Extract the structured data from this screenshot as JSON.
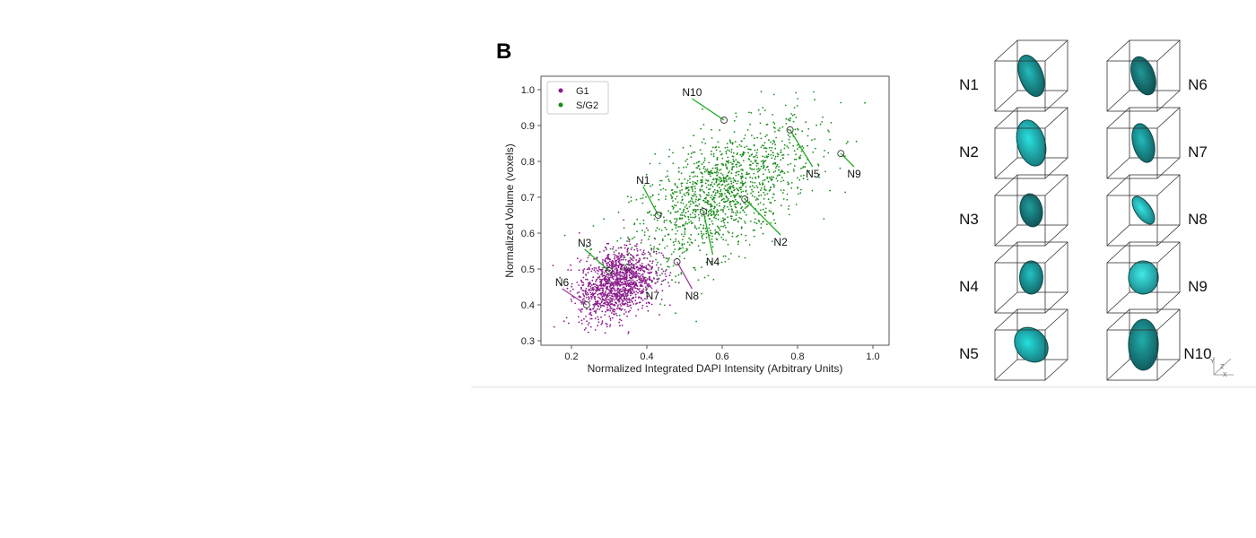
{
  "panel_label": "B",
  "chart_data": {
    "type": "scatter",
    "title": "",
    "xlabel": "Normalized Integrated DAPI Intensity (Arbitrary Units)",
    "ylabel": "Normalized Volume (voxels)",
    "xlim": [
      0.12,
      1.05
    ],
    "ylim": [
      0.29,
      1.03
    ],
    "xticks": [
      "0.2",
      "0.4",
      "0.6",
      "0.8",
      "1.0"
    ],
    "xtick_values": [
      0.2,
      0.4,
      0.6,
      0.8,
      1.0
    ],
    "yticks": [
      "0.3",
      "0.4",
      "0.5",
      "0.6",
      "0.7",
      "0.8",
      "0.9",
      "1.0"
    ],
    "ytick_values": [
      0.3,
      0.4,
      0.5,
      0.6,
      0.7,
      0.8,
      0.9,
      1.0
    ],
    "grid": false,
    "legend_position": "top-left",
    "series": [
      {
        "name": "G1",
        "color": "#8b1a8b",
        "count": 1300,
        "center": [
          0.32,
          0.46
        ],
        "spread": [
          0.05,
          0.05
        ],
        "corr": 0.3
      },
      {
        "name": "S/G2",
        "color": "#1a8c1a",
        "count": 1400,
        "center": [
          0.6,
          0.71
        ],
        "spread": [
          0.12,
          0.1
        ],
        "corr": 0.6
      }
    ],
    "annotations": [
      {
        "label": "N1",
        "x": 0.43,
        "y": 0.65,
        "tx": 0.39,
        "ty": 0.73,
        "color": "#22aa22"
      },
      {
        "label": "N2",
        "x": 0.66,
        "y": 0.695,
        "tx": 0.755,
        "ty": 0.595,
        "color": "#22aa22"
      },
      {
        "label": "N3",
        "x": 0.3,
        "y": 0.495,
        "tx": 0.235,
        "ty": 0.555,
        "color": "#22aa22"
      },
      {
        "label": "N4",
        "x": 0.55,
        "y": 0.66,
        "tx": 0.575,
        "ty": 0.54,
        "color": "#22aa22"
      },
      {
        "label": "N5",
        "x": 0.78,
        "y": 0.888,
        "tx": 0.84,
        "ty": 0.785,
        "color": "#22aa22"
      },
      {
        "label": "N6",
        "x": 0.24,
        "y": 0.4,
        "tx": 0.175,
        "ty": 0.445,
        "color": "#a040a0"
      },
      {
        "label": "N7",
        "x": 0.35,
        "y": 0.505,
        "tx": 0.415,
        "ty": 0.445,
        "color": "#a040a0"
      },
      {
        "label": "N8",
        "x": 0.48,
        "y": 0.52,
        "tx": 0.52,
        "ty": 0.445,
        "color": "#a040a0"
      },
      {
        "label": "N9",
        "x": 0.915,
        "y": 0.822,
        "tx": 0.95,
        "ty": 0.785,
        "color": "#22aa22"
      },
      {
        "label": "N10",
        "x": 0.605,
        "y": 0.915,
        "tx": 0.52,
        "ty": 0.975,
        "color": "#22aa22"
      }
    ]
  },
  "nuclei": [
    {
      "label": "N1",
      "brightness": 0.45,
      "rx": 0.42,
      "ry": 0.78,
      "rot": -20
    },
    {
      "label": "N2",
      "brightness": 0.75,
      "rx": 0.5,
      "ry": 0.85,
      "rot": -15
    },
    {
      "label": "N3",
      "brightness": 0.25,
      "rx": 0.4,
      "ry": 0.6,
      "rot": -10
    },
    {
      "label": "N4",
      "brightness": 0.5,
      "rx": 0.42,
      "ry": 0.6,
      "rot": 0
    },
    {
      "label": "N5",
      "brightness": 0.7,
      "rx": 0.55,
      "ry": 0.68,
      "rot": -40
    },
    {
      "label": "N6",
      "brightness": 0.2,
      "rx": 0.4,
      "ry": 0.72,
      "rot": -20
    },
    {
      "label": "N7",
      "brightness": 0.45,
      "rx": 0.38,
      "ry": 0.72,
      "rot": -15
    },
    {
      "label": "N8",
      "brightness": 0.85,
      "rx": 0.28,
      "ry": 0.58,
      "rot": -35
    },
    {
      "label": "N9",
      "brightness": 0.95,
      "rx": 0.54,
      "ry": 0.6,
      "rot": 0
    },
    {
      "label": "N10",
      "brightness": 0.35,
      "rx": 0.54,
      "ry": 0.92,
      "rot": 0
    }
  ],
  "axis_triad": {
    "y": "Y",
    "z": "Z",
    "x": "X"
  }
}
